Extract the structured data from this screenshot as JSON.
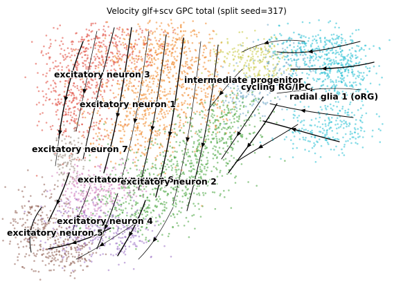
{
  "title": "Velocity glf+scv GPC total (split seed=317)",
  "clusters": [
    {
      "id": "exc3",
      "label": "excitatory neuron 3",
      "color": "#e0483d"
    },
    {
      "id": "exc1",
      "label": "excitatory neuron 1",
      "color": "#f0892a"
    },
    {
      "id": "ip",
      "label": "intermediate progenitor",
      "color": "#c7c93f"
    },
    {
      "id": "cyc",
      "label": "cycling RG/IPC",
      "color": "#6fa8c9"
    },
    {
      "id": "rg1",
      "label": "radial glia 1 (oRG)",
      "color": "#27bfd3"
    },
    {
      "id": "exc7",
      "label": "excitatory neuron 7",
      "color": "#9a8a7e"
    },
    {
      "id": "exc6",
      "label": "excitatory neuron 6",
      "color": "#d37fbd"
    },
    {
      "id": "exc2",
      "label": "excitatory neuron 2",
      "color": "#45a43d"
    },
    {
      "id": "exc4",
      "label": "excitatory neuron 4",
      "color": "#9a6fc4"
    },
    {
      "id": "exc5",
      "label": "excitatory neuron 5",
      "color": "#8f5f52"
    }
  ],
  "stream_color": "#000000"
}
